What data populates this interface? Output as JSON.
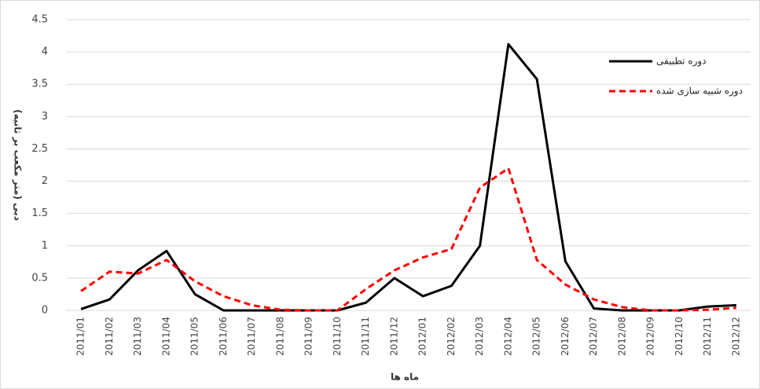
{
  "chart_data": {
    "type": "line",
    "y_label": "دبی (متر مکعب بر ثانیه)",
    "x_label": "ماه ها",
    "categories": [
      "2011/01",
      "2011/02",
      "2011/03",
      "2011/04",
      "2011/05",
      "2011/06",
      "2011/07",
      "2011/08",
      "2011/09",
      "2011/10",
      "2011/11",
      "2011/12",
      "2012/01",
      "2012/02",
      "2012/03",
      "2012/04",
      "2012/05",
      "2012/06",
      "2012/07",
      "2012/08",
      "2012/09",
      "2012/10",
      "2012/11",
      "2012/12"
    ],
    "series": [
      {
        "name": "دوره تطبیقی",
        "color": "#000000",
        "dash": false,
        "values": [
          0.02,
          0.17,
          0.62,
          0.92,
          0.25,
          0,
          0,
          0,
          0,
          0,
          0.12,
          0.5,
          0.22,
          0.38,
          1.0,
          4.12,
          3.58,
          0.76,
          0.03,
          0,
          0,
          0,
          0.06,
          0.08
        ]
      },
      {
        "name": "دوره شبیه سازی شده",
        "color": "#ff0000",
        "dash": true,
        "values": [
          0.3,
          0.6,
          0.57,
          0.78,
          0.45,
          0.22,
          0.08,
          0.01,
          0,
          0,
          0.33,
          0.62,
          0.82,
          0.95,
          1.9,
          2.2,
          0.78,
          0.4,
          0.17,
          0.05,
          0,
          0,
          0.01,
          0.04
        ]
      }
    ],
    "ylim": [
      0,
      4.5
    ],
    "yticks": [
      0,
      0.5,
      1,
      1.5,
      2,
      2.5,
      3,
      3.5,
      4,
      4.5
    ],
    "grid": true,
    "legend": "top-right"
  }
}
